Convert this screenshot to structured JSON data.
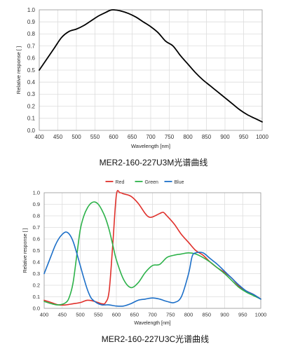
{
  "chart_data": [
    {
      "type": "line",
      "caption": "MER2-160-227U3M光谱曲线",
      "xlabel": "Wavelength [nm]",
      "ylabel": "Relative response [ ]",
      "xlim": [
        400,
        1000
      ],
      "ylim": [
        0,
        1.0
      ],
      "xticks": [
        "400",
        "450",
        "500",
        "550",
        "600",
        "650",
        "700",
        "750",
        "800",
        "850",
        "900",
        "950",
        "1000"
      ],
      "yticks": [
        "0.0",
        "0.1",
        "0.2",
        "0.3",
        "0.4",
        "0.5",
        "0.6",
        "0.7",
        "0.8",
        "0.9",
        "1.0"
      ],
      "grid": true,
      "series": [
        {
          "color": "#000000",
          "x": [
            400,
            420,
            440,
            460,
            480,
            500,
            520,
            540,
            560,
            580,
            590,
            600,
            620,
            640,
            660,
            680,
            700,
            720,
            740,
            760,
            780,
            800,
            820,
            840,
            860,
            880,
            900,
            920,
            940,
            960,
            980,
            1000
          ],
          "y": [
            0.5,
            0.59,
            0.68,
            0.77,
            0.82,
            0.84,
            0.87,
            0.91,
            0.95,
            0.98,
            0.995,
            1.0,
            0.99,
            0.97,
            0.94,
            0.9,
            0.86,
            0.81,
            0.74,
            0.7,
            0.62,
            0.55,
            0.48,
            0.42,
            0.37,
            0.32,
            0.27,
            0.22,
            0.17,
            0.13,
            0.1,
            0.07
          ]
        }
      ]
    },
    {
      "type": "line",
      "caption": "MER2-160-227U3C光谱曲线",
      "xlabel": "Wavelength [nm]",
      "ylabel": "Relative response [ ]",
      "xlim": [
        400,
        1000
      ],
      "ylim": [
        0,
        1.0
      ],
      "xticks": [
        "400",
        "450",
        "500",
        "550",
        "600",
        "650",
        "700",
        "750",
        "800",
        "850",
        "900",
        "950",
        "1000"
      ],
      "yticks": [
        "0.0",
        "0.1",
        "0.2",
        "0.3",
        "0.4",
        "0.5",
        "0.6",
        "0.7",
        "0.8",
        "0.9",
        "1.0"
      ],
      "grid": true,
      "legend": "top-center",
      "series": [
        {
          "name": "Red",
          "color": "#e0302b",
          "x": [
            400,
            420,
            440,
            460,
            480,
            500,
            520,
            540,
            560,
            570,
            580,
            590,
            600,
            610,
            620,
            640,
            660,
            680,
            690,
            700,
            720,
            730,
            740,
            760,
            780,
            800,
            820,
            840,
            860,
            880,
            900,
            920,
            940,
            960,
            980,
            1000
          ],
          "y": [
            0.07,
            0.05,
            0.03,
            0.03,
            0.04,
            0.05,
            0.07,
            0.06,
            0.04,
            0.05,
            0.15,
            0.55,
            0.98,
            1.0,
            0.99,
            0.97,
            0.91,
            0.82,
            0.79,
            0.79,
            0.82,
            0.83,
            0.8,
            0.73,
            0.64,
            0.57,
            0.5,
            0.46,
            0.4,
            0.35,
            0.31,
            0.26,
            0.19,
            0.15,
            0.12,
            0.08
          ]
        },
        {
          "name": "Green",
          "color": "#2db24a",
          "x": [
            400,
            420,
            440,
            460,
            470,
            480,
            490,
            500,
            510,
            520,
            530,
            540,
            550,
            560,
            570,
            580,
            590,
            600,
            620,
            640,
            660,
            680,
            700,
            720,
            740,
            760,
            780,
            800,
            820,
            840,
            860,
            880,
            900,
            920,
            940,
            960,
            980,
            1000
          ],
          "y": [
            0.06,
            0.04,
            0.03,
            0.05,
            0.1,
            0.22,
            0.45,
            0.68,
            0.8,
            0.87,
            0.91,
            0.92,
            0.9,
            0.85,
            0.78,
            0.68,
            0.55,
            0.42,
            0.25,
            0.18,
            0.22,
            0.31,
            0.37,
            0.38,
            0.44,
            0.46,
            0.47,
            0.48,
            0.47,
            0.44,
            0.4,
            0.35,
            0.3,
            0.24,
            0.18,
            0.14,
            0.11,
            0.08
          ]
        },
        {
          "name": "Blue",
          "color": "#1c6fc8",
          "x": [
            400,
            410,
            420,
            430,
            440,
            450,
            460,
            470,
            480,
            490,
            500,
            510,
            520,
            530,
            540,
            550,
            560,
            570,
            580,
            600,
            620,
            640,
            660,
            680,
            700,
            720,
            740,
            760,
            780,
            800,
            810,
            820,
            840,
            860,
            880,
            900,
            920,
            940,
            960,
            980,
            1000
          ],
          "y": [
            0.3,
            0.38,
            0.46,
            0.54,
            0.6,
            0.64,
            0.66,
            0.64,
            0.58,
            0.48,
            0.37,
            0.26,
            0.16,
            0.09,
            0.06,
            0.04,
            0.03,
            0.03,
            0.03,
            0.02,
            0.02,
            0.04,
            0.07,
            0.08,
            0.09,
            0.08,
            0.06,
            0.05,
            0.1,
            0.3,
            0.45,
            0.48,
            0.48,
            0.43,
            0.38,
            0.32,
            0.26,
            0.2,
            0.15,
            0.12,
            0.08
          ]
        }
      ]
    }
  ]
}
